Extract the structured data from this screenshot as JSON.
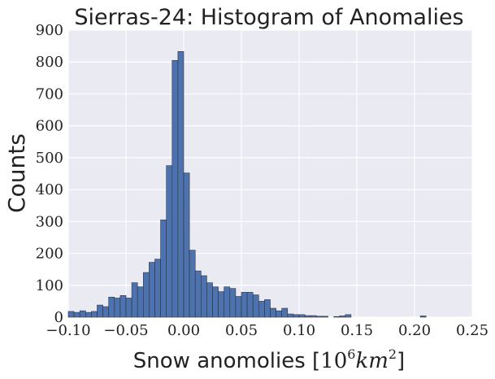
{
  "chart_data": {
    "type": "bar",
    "title": "Sierras-24: Histogram of Anomalies",
    "xlabel_text": "Snow anomolies [",
    "xlabel_base": "10",
    "xlabel_exp1": "6",
    "xlabel_unit": "km",
    "xlabel_exp2": "2",
    "xlabel_end": "]",
    "ylabel": "Counts",
    "xlim": [
      -0.1,
      0.25
    ],
    "ylim": [
      0,
      900
    ],
    "xticks": [
      "−0.10",
      "−0.05",
      "0.00",
      "0.05",
      "0.10",
      "0.15",
      "0.20",
      "0.25"
    ],
    "xtick_values": [
      -0.1,
      -0.05,
      0.0,
      0.05,
      0.1,
      0.15,
      0.2,
      0.25
    ],
    "yticks": [
      "0",
      "100",
      "200",
      "300",
      "400",
      "500",
      "600",
      "700",
      "800",
      "900"
    ],
    "ytick_values": [
      0,
      100,
      200,
      300,
      400,
      500,
      600,
      700,
      800,
      900
    ],
    "grid": true,
    "bar_color": "#4c72b0",
    "plot_background": "#eaeaf2",
    "bin_edges": [
      -0.1,
      -0.095,
      -0.09,
      -0.085,
      -0.08,
      -0.075,
      -0.07,
      -0.065,
      -0.06,
      -0.055,
      -0.05,
      -0.045,
      -0.04,
      -0.035,
      -0.03,
      -0.025,
      -0.02,
      -0.015,
      -0.01,
      -0.005,
      0.0,
      0.005,
      0.01,
      0.015,
      0.02,
      0.025,
      0.03,
      0.035,
      0.04,
      0.045,
      0.05,
      0.055,
      0.06,
      0.065,
      0.07,
      0.075,
      0.08,
      0.085,
      0.09,
      0.095,
      0.1,
      0.105,
      0.11,
      0.115,
      0.12,
      0.125,
      0.13,
      0.135,
      0.14,
      0.145,
      0.15,
      0.155,
      0.16,
      0.165,
      0.17,
      0.175,
      0.18,
      0.185,
      0.19,
      0.195,
      0.2,
      0.205,
      0.21
    ],
    "values": [
      18,
      15,
      20,
      15,
      18,
      38,
      33,
      63,
      60,
      68,
      60,
      108,
      95,
      140,
      172,
      182,
      305,
      475,
      805,
      833,
      452,
      210,
      145,
      130,
      108,
      95,
      80,
      95,
      90,
      65,
      78,
      78,
      70,
      50,
      55,
      28,
      20,
      28,
      10,
      8,
      8,
      5,
      5,
      3,
      3,
      0,
      2,
      4,
      8,
      0,
      0,
      0,
      0,
      0,
      0,
      0,
      0,
      0,
      0,
      0,
      0,
      4
    ]
  }
}
